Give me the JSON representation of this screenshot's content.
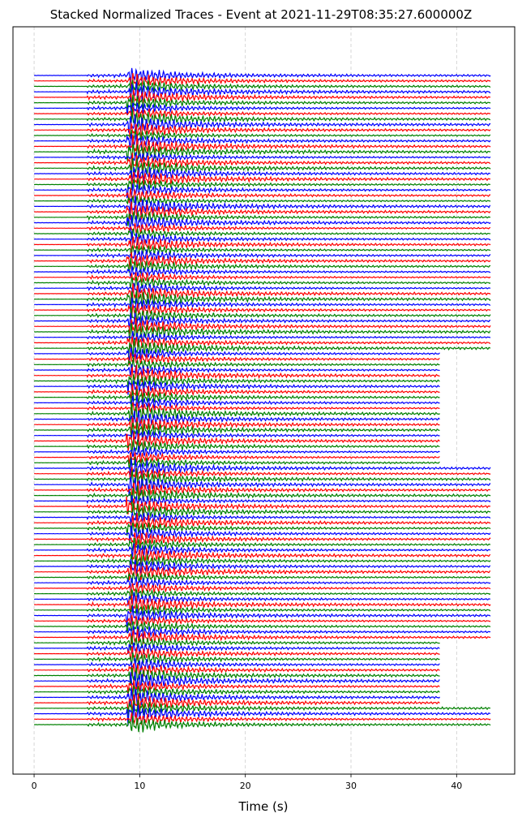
{
  "chart_data": {
    "type": "line",
    "title": "Stacked Normalized Traces - Event at 2021-11-29T08:35:27.600000Z",
    "xlabel": "Time (s)",
    "ylabel": "",
    "xlim": [
      -2,
      45.5
    ],
    "x_ticks": [
      0,
      10,
      20,
      30,
      40
    ],
    "x_tick_labels": [
      "0",
      "10",
      "20",
      "30",
      "40"
    ],
    "grid": "x-dashed",
    "trace_count": 120,
    "trace_start_s": 0,
    "onset_noise_s": 5,
    "p_arrival_s": 9,
    "s_arrival_s": 10,
    "color_cycle": [
      "#0000ff",
      "#ff0000",
      "#008000"
    ],
    "trace_end_s": [
      43.2,
      43.2,
      43.2,
      43.2,
      43.2,
      43.2,
      43.2,
      43.2,
      43.2,
      43.2,
      43.2,
      43.2,
      43.2,
      43.2,
      43.2,
      43.2,
      43.2,
      43.2,
      43.2,
      43.2,
      43.2,
      43.2,
      43.2,
      43.2,
      43.2,
      43.2,
      43.2,
      43.2,
      43.2,
      43.2,
      43.2,
      43.2,
      43.2,
      43.2,
      43.2,
      43.2,
      43.2,
      43.2,
      43.2,
      43.2,
      43.2,
      43.2,
      43.2,
      43.2,
      43.2,
      43.2,
      43.2,
      43.2,
      43.2,
      43.2,
      43.2,
      38.4,
      38.4,
      38.4,
      38.4,
      38.4,
      38.4,
      38.4,
      38.4,
      38.4,
      38.4,
      38.4,
      38.4,
      38.4,
      38.4,
      38.4,
      38.4,
      38.4,
      38.4,
      38.4,
      38.4,
      38.4,
      43.2,
      43.2,
      43.2,
      43.2,
      43.2,
      43.2,
      43.2,
      43.2,
      43.2,
      43.2,
      43.2,
      43.2,
      43.2,
      43.2,
      43.2,
      43.2,
      43.2,
      43.2,
      43.2,
      43.2,
      43.2,
      43.2,
      43.2,
      43.2,
      43.2,
      43.2,
      43.2,
      43.2,
      43.2,
      43.2,
      43.2,
      43.2,
      38.4,
      38.4,
      38.4,
      38.4,
      38.4,
      38.4,
      38.4,
      38.4,
      38.4,
      38.4,
      38.4,
      38.4,
      43.2,
      43.2,
      43.2,
      43.2,
      43.2,
      43.2,
      43.2,
      43.2
    ]
  }
}
